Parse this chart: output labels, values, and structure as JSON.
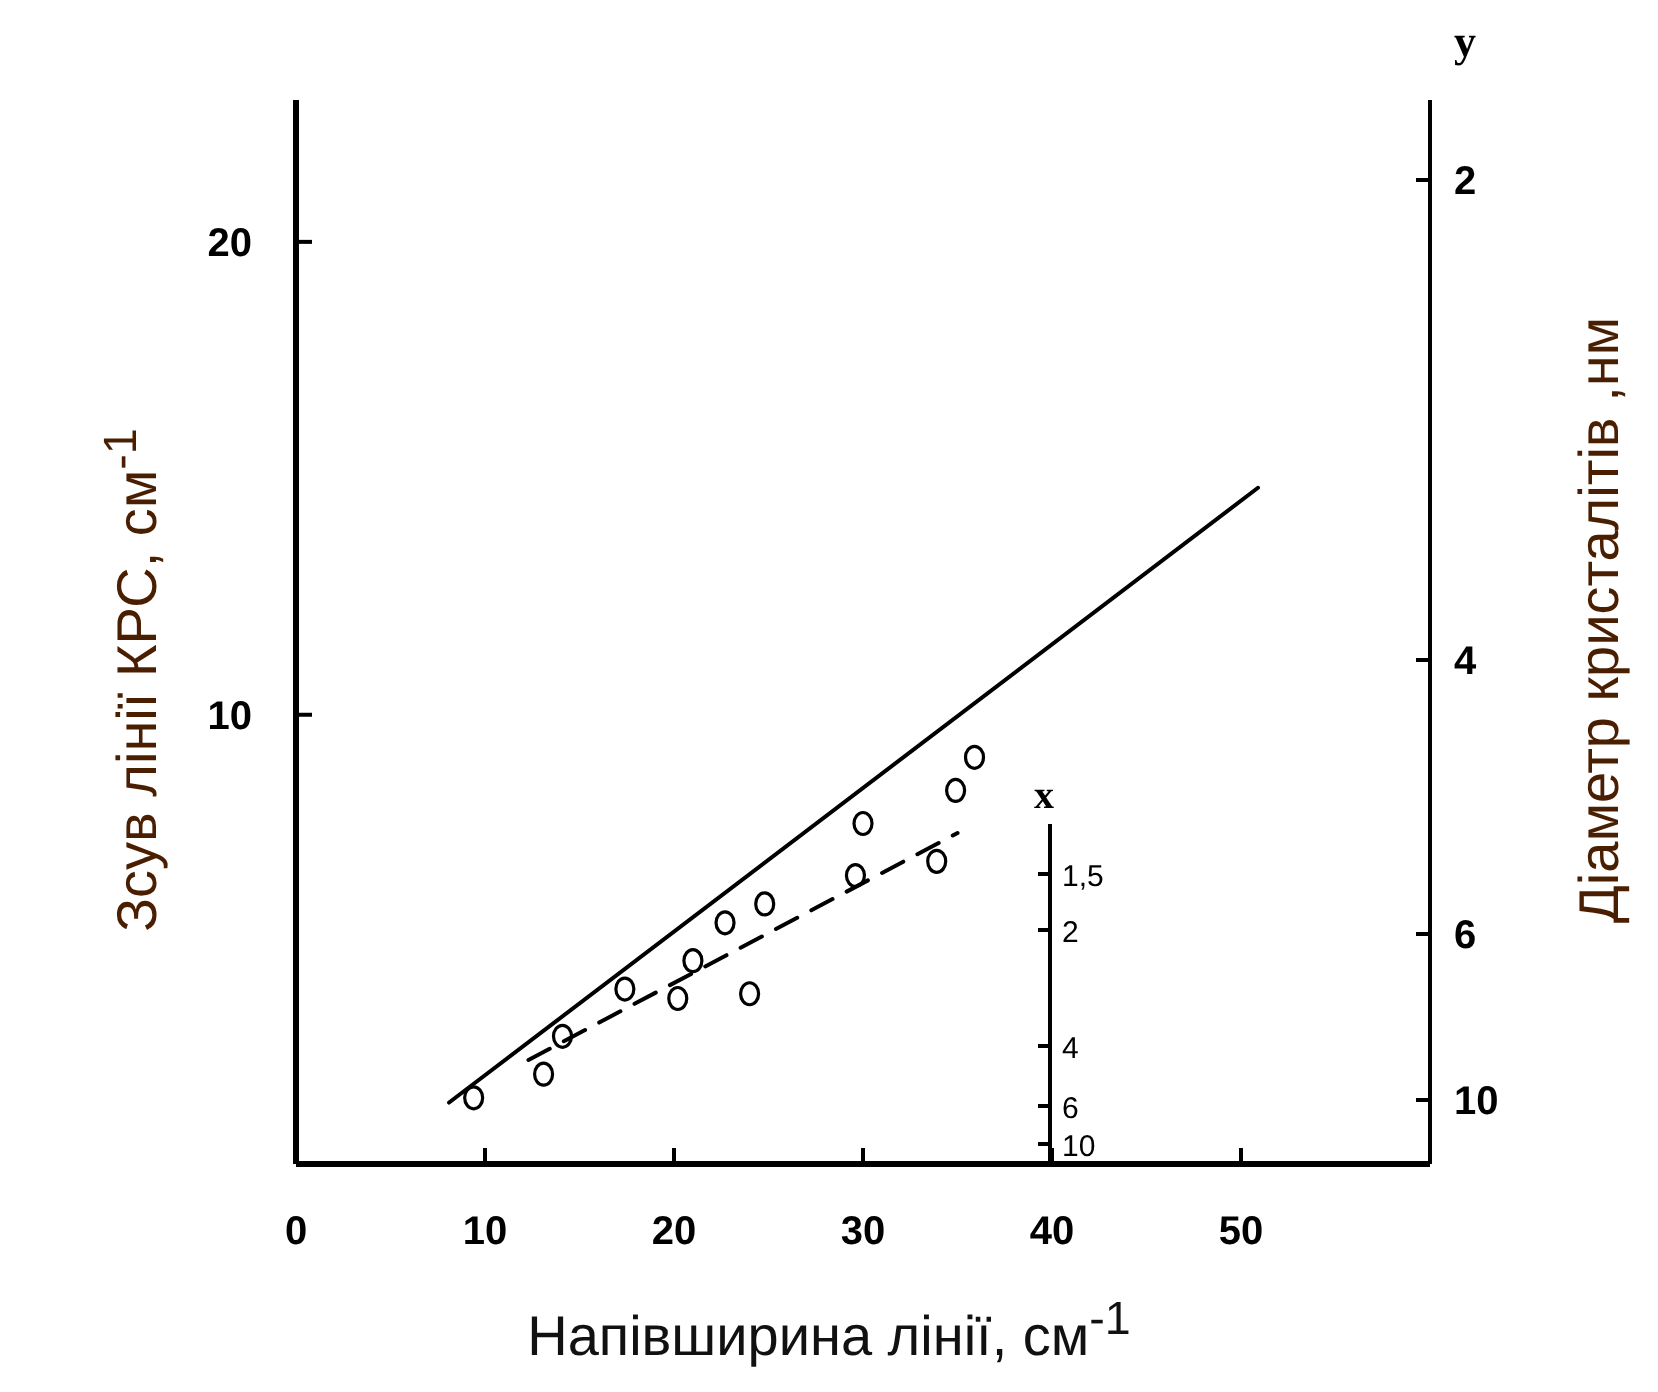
{
  "chart_data": {
    "type": "scatter",
    "xlabel": "Напівширина лінії, см$^{-1}$",
    "ylabel": "Зсув лінії КРС, см$^{-1}$",
    "y2label": "Діаметр кристалітів ,нм",
    "xlim": [
      0,
      60
    ],
    "xticks": [
      0,
      10,
      20,
      30,
      40,
      50
    ],
    "ylim": [
      0.5,
      23
    ],
    "yticks": [
      10,
      20
    ],
    "grid": false,
    "legend": false,
    "annotations": [
      "y",
      "2",
      "4",
      "6",
      "10",
      "x",
      "1,5",
      "2",
      "4",
      "6",
      "10"
    ],
    "series": [
      {
        "color": "#000000",
        "marker": "circle",
        "x": [
          9.4,
          13.1,
          14.1,
          17.4,
          20.2,
          21.0,
          22.7,
          24.8,
          24.0,
          29.6,
          30.0,
          33.9,
          34.9,
          35.9
        ],
        "values": [
          1.9,
          2.4,
          3.2,
          4.2,
          4.0,
          4.8,
          5.6,
          6.0,
          4.1,
          6.6,
          7.7,
          6.9,
          8.4,
          9.1
        ]
      },
      {
        "type": "line",
        "color": "#000000",
        "line_style": "solid",
        "x": [
          8.1,
          50.9
        ],
        "values": [
          1.8,
          14.8
        ]
      },
      {
        "type": "line",
        "color": "#000000",
        "line_style": "dashed",
        "x": [
          12.3,
          35.0
        ],
        "values": [
          2.7,
          7.5
        ]
      }
    ]
  }
}
